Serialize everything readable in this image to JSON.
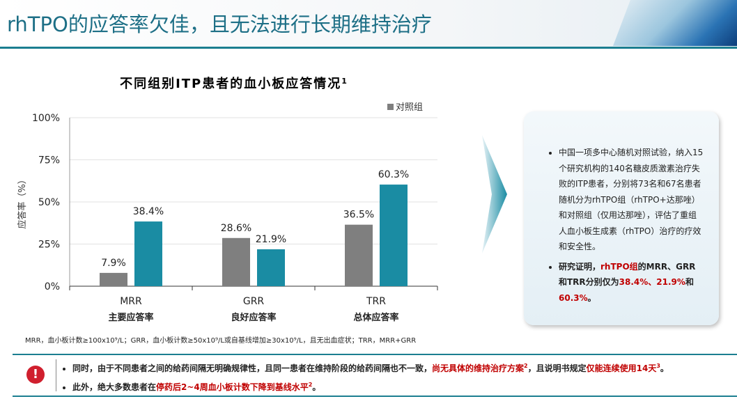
{
  "header": {
    "title": "rhTPO的应答率欠佳，且无法进行长期维持治疗"
  },
  "chart_data": {
    "type": "bar",
    "title": "不同组别ITP患者的血小板应答情况",
    "title_superscript": "1",
    "y_label": "应答率（%）",
    "categories": [
      "MRR",
      "GRR",
      "TRR"
    ],
    "category_sublabels": [
      "主要应答率",
      "良好应答率",
      "总体应答率"
    ],
    "series": [
      {
        "name": "对照组",
        "color": "#7f7f7f",
        "values": [
          7.9,
          28.6,
          36.5
        ],
        "value_labels": [
          "7.9%",
          "28.6%",
          "36.5%"
        ]
      },
      {
        "color": "#1a8ca3",
        "values": [
          38.4,
          21.9,
          60.3
        ],
        "value_labels": [
          "38.4%",
          "21.9%",
          "60.3%"
        ]
      }
    ],
    "ylim": [
      0,
      100
    ],
    "yticks": [
      {
        "value": 0,
        "label": "0%"
      },
      {
        "value": 25,
        "label": "25%"
      },
      {
        "value": 50,
        "label": "50%"
      },
      {
        "value": 75,
        "label": "75%"
      },
      {
        "value": 100,
        "label": "100%"
      }
    ],
    "grid": true,
    "legend": "top-right",
    "footnote": "MRR，血小板计数≥100x10⁹/L；GRR，血小板计数≥50x10⁹/L或自基线增加≥30x10⁹/L，且无出血症状；TRR，MRR+GRR"
  },
  "summary": {
    "bullets": [
      [
        {
          "text": "中国一项多中心随机对照试验，纳入15个研究机构的140名糖皮质激素治疗失败的ITP患者，分别将73名和67名患者随机分为rhTPO组（rhTPO+达那唑）和对照组（仅用达那唑），评估了重组人血小板生成素（rhTPO）治疗的疗效和安全性。"
        }
      ],
      [
        {
          "text": "研究证明，",
          "bold": true
        },
        {
          "text": "rhTPO组",
          "bold": true,
          "red": true
        },
        {
          "text": "的MRR、GRR和TRR分别仅为",
          "bold": true
        },
        {
          "text": "38.4%、21.9%",
          "bold": true,
          "red": true
        },
        {
          "text": "和",
          "bold": true
        },
        {
          "text": "60.3%",
          "bold": true,
          "red": true
        },
        {
          "text": "。",
          "bold": true
        }
      ]
    ]
  },
  "notice": {
    "bullets": [
      [
        {
          "text": "同时，由于不同患者之间的给药间隔无明确规律性，且同一患者在维持阶段的给药间隔也不一致，"
        },
        {
          "text": "尚无具体的维持治疗方案",
          "red": true
        },
        {
          "text": "2",
          "red": true,
          "sup": true
        },
        {
          "text": "，且说明书规定"
        },
        {
          "text": "仅能连续使用14天",
          "red": true
        },
        {
          "text": "3",
          "red": true,
          "sup": true
        },
        {
          "text": "。"
        }
      ],
      [
        {
          "text": "此外，绝大多数患者在"
        },
        {
          "text": "停药后2~4周血小板计数下降到基线水平",
          "red": true
        },
        {
          "text": "2",
          "red": true,
          "sup": true
        },
        {
          "text": "。"
        }
      ]
    ]
  }
}
